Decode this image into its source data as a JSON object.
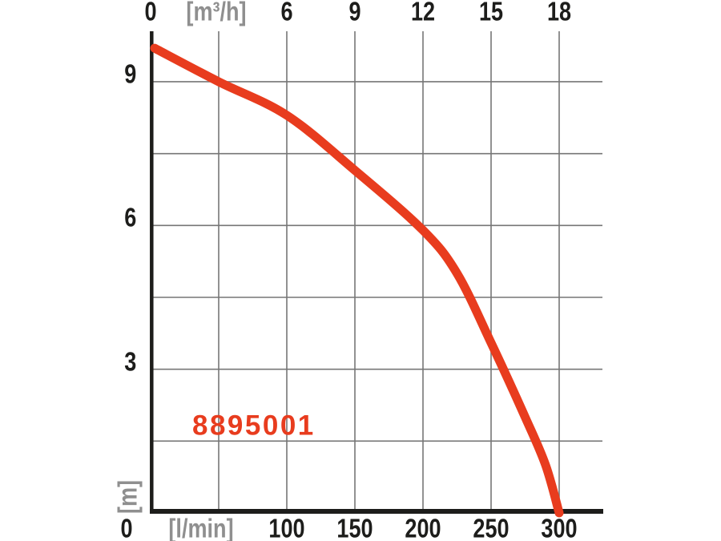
{
  "colors": {
    "curve_red": "#e83c1e",
    "grid_gray": "#767676",
    "unit_gray": "#8f8f8f",
    "axis_black": "#1d1d1b",
    "background": "#ffffff"
  },
  "chart_data": {
    "type": "line",
    "product_code": "8895001",
    "x_axis_top": {
      "unit_label": "[m³/h]",
      "tick_labels": [
        "0",
        "[m³/h]",
        "6",
        "9",
        "12",
        "15",
        "18"
      ],
      "tick_values_m3h": [
        0,
        3,
        6,
        9,
        12,
        15,
        18
      ],
      "range_m3h": [
        0,
        19.8
      ]
    },
    "x_axis_bottom": {
      "unit_label": "[l/min]",
      "tick_labels": [
        "0",
        "[l/min]",
        "100",
        "150",
        "200",
        "250",
        "300"
      ],
      "tick_values_lmin": [
        0,
        50,
        100,
        150,
        200,
        250,
        300
      ],
      "range_lmin": [
        0,
        330
      ]
    },
    "y_axis": {
      "unit_label": "[m]",
      "tick_labels": [
        "9",
        "6",
        "3"
      ],
      "tick_values_m": [
        9,
        6,
        3
      ],
      "range_m": [
        0,
        10.05
      ]
    },
    "grid": {
      "v_lines_lmin": [
        50,
        100,
        150,
        200,
        250,
        300
      ],
      "h_lines_m": [
        9,
        7.5,
        6,
        4.5,
        3,
        1.5
      ]
    },
    "series": [
      {
        "name": "8895001",
        "color": "#e83c1e",
        "points": [
          {
            "q_lmin": 0,
            "h_m": 9.7
          },
          {
            "q_lmin": 50,
            "h_m": 9.0
          },
          {
            "q_lmin": 100,
            "h_m": 8.3
          },
          {
            "q_lmin": 150,
            "h_m": 7.15
          },
          {
            "q_lmin": 200,
            "h_m": 5.9
          },
          {
            "q_lmin": 225,
            "h_m": 5.0
          },
          {
            "q_lmin": 250,
            "h_m": 3.55
          },
          {
            "q_lmin": 275,
            "h_m": 2.0
          },
          {
            "q_lmin": 290,
            "h_m": 1.0
          },
          {
            "q_lmin": 300,
            "h_m": 0
          }
        ]
      }
    ]
  }
}
